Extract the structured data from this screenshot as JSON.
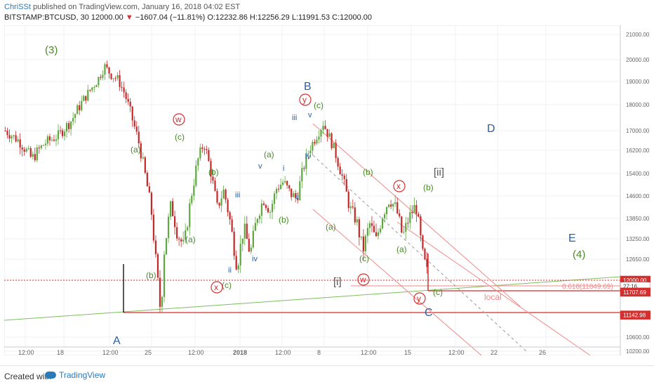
{
  "header": {
    "author": "ChriSSt",
    "published": "published on TradingView.com, January 16, 2018 04:02 EST",
    "symbol": "BITSTAMP:BTCUSD, 30",
    "last": "12000.00",
    "change": "−1607.04 (−11.81%)",
    "ohlc": "O:12232.86 H:12256.29 L:11991.53 C:12000.00"
  },
  "footer": {
    "created_with": "Created with",
    "brand": "TradingView"
  },
  "colors": {
    "up": "#5fa73f",
    "down": "#c62828",
    "wave_green": "#4a8a2a",
    "wave_blue": "#2b5f9e",
    "red": "#d32f2f",
    "pink": "#f08a8a"
  },
  "chart_data": {
    "type": "candlestick",
    "title": "",
    "xlabel": "",
    "ylabel": "",
    "ylim": [
      10200,
      21000
    ],
    "x_ticks": [
      "12:00",
      "18",
      "12:00",
      "25",
      "12:00",
      "2018",
      "12:00",
      "8",
      "12:00",
      "15",
      "12:00",
      "22",
      "26"
    ],
    "y_ticks": [
      "21000.00",
      "20000.00",
      "19000.00",
      "18000.00",
      "17000.00",
      "16200.00",
      "15400.00",
      "14600.00",
      "13850.00",
      "13250.00",
      "12650.00",
      "12000.00",
      "10600.00",
      "10200.00"
    ],
    "price_tags": [
      {
        "label": "12000.00",
        "value": 12000,
        "color": "#d32f2f"
      },
      {
        "label": "27:16",
        "value": 11850,
        "color": "#ffffff"
      },
      {
        "label": "11707.69",
        "value": 11707.69,
        "color": "#d32f2f"
      },
      {
        "label": "11142.98",
        "value": 11142.98,
        "color": "#d32f2f"
      }
    ],
    "fib_label": "0.618(11849.69)",
    "local_label": "local",
    "price_path": [
      [
        0,
        17000
      ],
      [
        2,
        16600
      ],
      [
        4,
        15900
      ],
      [
        6,
        16500
      ],
      [
        8,
        16800
      ],
      [
        10,
        17400
      ],
      [
        12,
        18300
      ],
      [
        14,
        19100
      ],
      [
        15,
        19700
      ],
      [
        16,
        19300
      ],
      [
        17,
        19100
      ],
      [
        18,
        18500
      ],
      [
        19,
        17600
      ],
      [
        20,
        16700
      ],
      [
        21,
        15500
      ],
      [
        22,
        14200
      ],
      [
        23,
        12000
      ],
      [
        23.5,
        11142.98
      ],
      [
        24,
        12900
      ],
      [
        25,
        14300
      ],
      [
        26,
        13400
      ],
      [
        27,
        13000
      ],
      [
        28,
        14500
      ],
      [
        29,
        15800
      ],
      [
        30,
        16500
      ],
      [
        31,
        15500
      ],
      [
        32,
        14200
      ],
      [
        33,
        14800
      ],
      [
        34,
        13700
      ],
      [
        35,
        12400
      ],
      [
        36,
        13600
      ],
      [
        37,
        12800
      ],
      [
        38,
        13900
      ],
      [
        39,
        14500
      ],
      [
        40,
        14100
      ],
      [
        41,
        14900
      ],
      [
        42,
        15100
      ],
      [
        43,
        14700
      ],
      [
        44,
        14500
      ],
      [
        45,
        15600
      ],
      [
        46,
        16300
      ],
      [
        47,
        16800
      ],
      [
        48,
        17300
      ],
      [
        49,
        16700
      ],
      [
        50,
        16000
      ],
      [
        51,
        15200
      ],
      [
        52,
        14200
      ],
      [
        53,
        13800
      ],
      [
        54,
        12900
      ],
      [
        55,
        13700
      ],
      [
        56,
        13200
      ],
      [
        57,
        14000
      ],
      [
        58,
        14500
      ],
      [
        59,
        14200
      ],
      [
        60,
        13300
      ],
      [
        61,
        13900
      ],
      [
        62,
        14300
      ],
      [
        63,
        12800
      ],
      [
        64,
        12000
      ]
    ],
    "wave_labels": [
      {
        "text": "(3)",
        "color": "green"
      },
      {
        "text": "A",
        "color": "blue"
      },
      {
        "text": "(a)",
        "color": "green"
      },
      {
        "text": "(b)",
        "color": "green"
      },
      {
        "text": "(c)",
        "color": "green"
      },
      {
        "text": "w",
        "color": "red-circle"
      },
      {
        "text": "x",
        "color": "red-circle"
      },
      {
        "text": "y",
        "color": "red-circle"
      },
      {
        "text": "B",
        "color": "blue"
      },
      {
        "text": "C",
        "color": "blue"
      },
      {
        "text": "D",
        "color": "blue"
      },
      {
        "text": "E",
        "color": "blue"
      },
      {
        "text": "(4)",
        "color": "green"
      },
      {
        "text": "[i]",
        "color": "gray"
      },
      {
        "text": "[ii]",
        "color": "gray"
      },
      {
        "text": "i",
        "color": "blue"
      },
      {
        "text": "ii",
        "color": "blue"
      },
      {
        "text": "iii",
        "color": "blue"
      },
      {
        "text": "iv",
        "color": "blue"
      },
      {
        "text": "v",
        "color": "blue"
      }
    ]
  }
}
